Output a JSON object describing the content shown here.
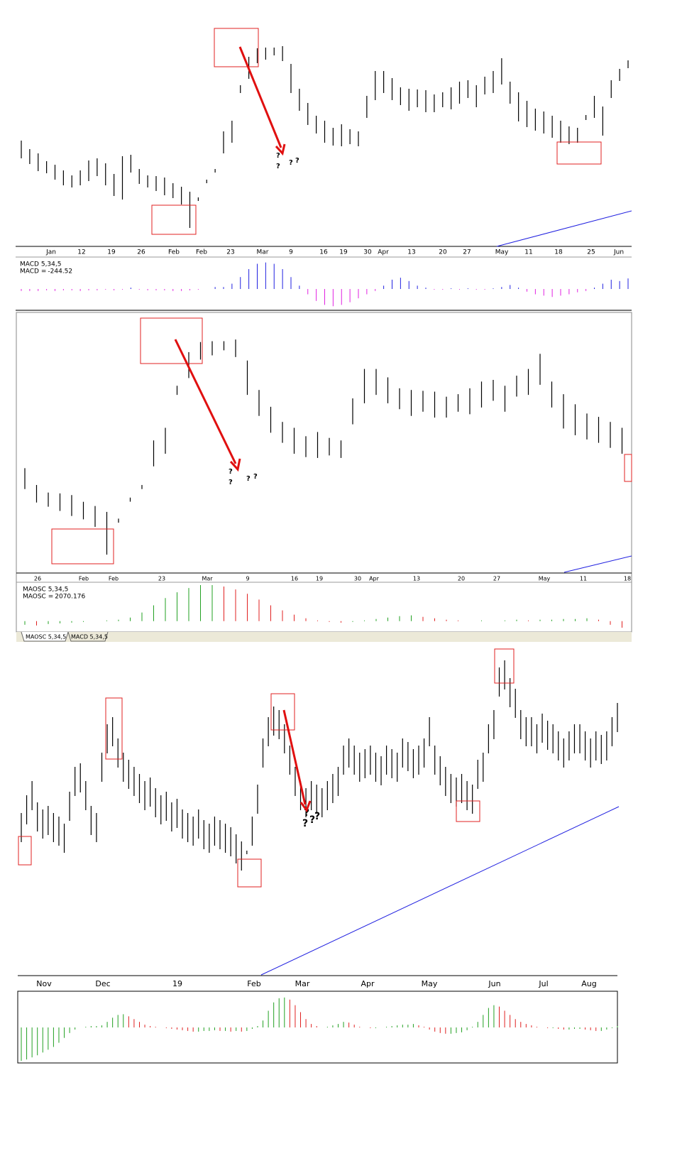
{
  "chart_data": [
    {
      "type": "hilo",
      "color": "#000000",
      "ylim": [
        0,
        315
      ],
      "x_labels": [
        "Jan",
        "12",
        "19",
        "26",
        "Feb",
        "Feb",
        "23",
        "Mar",
        "9",
        "16",
        "19",
        "30",
        "Apr",
        "13",
        "20",
        "27",
        "May",
        "11",
        "18",
        "25",
        "Jun"
      ],
      "high": [
        147,
        135,
        129,
        118,
        113,
        105,
        98,
        105,
        119,
        122,
        115,
        100,
        125,
        127,
        107,
        98,
        97,
        95,
        87,
        82,
        75,
        67,
        92,
        107,
        160,
        175,
        225,
        265,
        277,
        278,
        278,
        280,
        255,
        220,
        200,
        182,
        175,
        165,
        170,
        163,
        160,
        210,
        245,
        245,
        235,
        222,
        220,
        219,
        218,
        212,
        215,
        222,
        230,
        232,
        225,
        237,
        245,
        263,
        230,
        215,
        203,
        192,
        188,
        182,
        175,
        167,
        165,
        183,
        210,
        195,
        232,
        248,
        260
      ],
      "low": [
        123,
        115,
        105,
        102,
        93,
        85,
        82,
        85,
        91,
        98,
        85,
        70,
        65,
        103,
        87,
        82,
        77,
        71,
        67,
        58,
        25,
        63,
        88,
        103,
        130,
        145,
        215,
        235,
        257,
        262,
        268,
        260,
        215,
        190,
        170,
        158,
        145,
        141,
        140,
        143,
        140,
        180,
        205,
        215,
        205,
        198,
        190,
        195,
        188,
        188,
        195,
        192,
        200,
        208,
        195,
        213,
        215,
        227,
        200,
        175,
        167,
        162,
        158,
        152,
        145,
        143,
        145,
        177,
        180,
        155,
        208,
        232,
        250
      ],
      "annotations": [
        "?",
        "?",
        "?",
        "?"
      ]
    },
    {
      "type": "column",
      "title": "MACD 5,34,5",
      "label": "MACD =",
      "current": -244.52,
      "current_color": "#e020e0",
      "color_rule": "sign",
      "up_color": "#2020e0",
      "down_color": "#e020e0",
      "ylim": [
        -30,
        45
      ],
      "values": [
        -3,
        -3,
        -3,
        -2,
        -3,
        -2,
        -2,
        -3,
        -2,
        -2,
        -1,
        -2,
        -1,
        2,
        -1,
        -2,
        -2,
        -2,
        -3,
        -3,
        -2,
        -1,
        0,
        3,
        3,
        8,
        18,
        30,
        38,
        40,
        38,
        30,
        18,
        5,
        -8,
        -18,
        -24,
        -26,
        -24,
        -20,
        -14,
        -8,
        -3,
        5,
        14,
        17,
        12,
        5,
        2,
        -1,
        -1,
        1,
        -1,
        1,
        -1,
        -1,
        1,
        3,
        6,
        2,
        -4,
        -8,
        -10,
        -12,
        -10,
        -8,
        -5,
        -3,
        2,
        8,
        14,
        12,
        16
      ]
    },
    {
      "type": "hilo",
      "color": "#000000",
      "ylim": [
        4,
        308
      ],
      "x_labels": [
        "26",
        "Feb",
        "Feb",
        "23",
        "Mar",
        "9",
        "16",
        "19",
        "30",
        "Apr",
        "13",
        "20",
        "27",
        "May",
        "11",
        "18"
      ],
      "high": [
        127,
        107,
        98,
        97,
        95,
        87,
        82,
        75,
        67,
        92,
        107,
        160,
        175,
        225,
        265,
        277,
        278,
        278,
        280,
        255,
        220,
        200,
        182,
        175,
        165,
        170,
        163,
        160,
        210,
        245,
        245,
        235,
        222,
        220,
        219,
        218,
        212,
        215,
        222,
        230,
        232,
        225,
        237,
        245,
        263,
        230,
        215,
        203,
        192,
        188,
        182,
        175
      ],
      "low": [
        103,
        87,
        82,
        77,
        71,
        67,
        58,
        25,
        63,
        88,
        103,
        130,
        145,
        215,
        235,
        257,
        262,
        268,
        260,
        215,
        190,
        170,
        158,
        145,
        141,
        140,
        143,
        140,
        180,
        205,
        215,
        205,
        198,
        190,
        195,
        188,
        188,
        195,
        192,
        200,
        208,
        195,
        213,
        215,
        227,
        200,
        175,
        167,
        162,
        158,
        152,
        145
      ],
      "annotations": [
        "?",
        "?",
        "?",
        "?"
      ]
    },
    {
      "type": "column",
      "title": "MAOSC 5,34,5",
      "label": "MAOSC =",
      "current": 2070.176,
      "current_color": "#e02020",
      "color_rule": "slope",
      "up_color": "#22a022",
      "down_color": "#e02020",
      "ylim": [
        -13,
        52
      ],
      "values": [
        -5,
        -6,
        -4,
        -3,
        -2,
        -1,
        0,
        1,
        2,
        5,
        12,
        22,
        32,
        40,
        46,
        50,
        50,
        48,
        44,
        38,
        30,
        22,
        15,
        9,
        4,
        1,
        -1,
        -2,
        -1,
        1,
        3,
        5,
        7,
        8,
        6,
        4,
        2,
        1,
        0,
        1,
        0,
        1,
        2,
        1,
        2,
        2,
        3,
        3,
        4,
        2,
        -5,
        -9
      ]
    },
    {
      "type": "hilo",
      "color": "#000000",
      "ylim": [
        0,
        462
      ],
      "x_labels": [
        "Nov",
        "Dec",
        "19",
        "Feb",
        "Mar",
        "Apr",
        "May",
        "Jun",
        "Jul",
        "Aug"
      ],
      "high": [
        227,
        252,
        272,
        242,
        232,
        237,
        227,
        222,
        212,
        257,
        292,
        297,
        272,
        237,
        227,
        312,
        352,
        362,
        332,
        312,
        302,
        292,
        282,
        272,
        277,
        262,
        252,
        257,
        242,
        247,
        232,
        227,
        222,
        232,
        217,
        212,
        222,
        217,
        212,
        207,
        197,
        187,
        174,
        222,
        267,
        332,
        362,
        377,
        372,
        352,
        322,
        292,
        272,
        262,
        272,
        267,
        262,
        272,
        282,
        292,
        322,
        332,
        322,
        312,
        317,
        322,
        312,
        307,
        322,
        317,
        312,
        332,
        327,
        317,
        322,
        332,
        362,
        322,
        307,
        292,
        282,
        277,
        282,
        272,
        267,
        302,
        312,
        352,
        372,
        432,
        442,
        417,
        402,
        372,
        362,
        362,
        352,
        367,
        357,
        352,
        342,
        332,
        342,
        352,
        352,
        342,
        332,
        342,
        337,
        342,
        362,
        382
      ],
      "low": [
        187,
        212,
        232,
        202,
        192,
        197,
        187,
        182,
        172,
        217,
        252,
        257,
        232,
        197,
        187,
        272,
        312,
        322,
        292,
        272,
        262,
        252,
        242,
        232,
        237,
        222,
        212,
        217,
        202,
        207,
        192,
        187,
        182,
        192,
        177,
        172,
        182,
        177,
        172,
        167,
        157,
        147,
        170,
        182,
        227,
        292,
        322,
        337,
        332,
        312,
        282,
        252,
        232,
        222,
        232,
        227,
        222,
        232,
        242,
        252,
        282,
        292,
        282,
        272,
        277,
        282,
        272,
        267,
        282,
        277,
        272,
        292,
        287,
        277,
        282,
        292,
        322,
        282,
        267,
        252,
        242,
        237,
        242,
        232,
        227,
        262,
        272,
        312,
        332,
        392,
        402,
        377,
        362,
        332,
        322,
        322,
        312,
        327,
        317,
        312,
        302,
        292,
        302,
        312,
        312,
        302,
        292,
        302,
        297,
        302,
        322,
        342
      ],
      "annotations": [
        "?",
        "?",
        "?",
        "?"
      ]
    },
    {
      "type": "column",
      "color_rule": "slope",
      "up_color": "#22a022",
      "down_color": "#e02020",
      "ylim": [
        -50,
        50
      ],
      "values": [
        -48,
        -46,
        -43,
        -40,
        -36,
        -32,
        -28,
        -22,
        -15,
        -8,
        -3,
        0,
        1,
        2,
        2,
        3,
        8,
        14,
        18,
        19,
        16,
        12,
        8,
        4,
        2,
        1,
        0,
        -1,
        -2,
        -3,
        -4,
        -5,
        -6,
        -6,
        -5,
        -5,
        -4,
        -5,
        -5,
        -6,
        -5,
        -6,
        -5,
        -2,
        2,
        10,
        24,
        36,
        42,
        43,
        40,
        32,
        22,
        12,
        5,
        2,
        0,
        1,
        3,
        5,
        8,
        7,
        4,
        1,
        0,
        -1,
        -1,
        0,
        1,
        2,
        3,
        4,
        4,
        5,
        3,
        1,
        -3,
        -6,
        -8,
        -9,
        -9,
        -8,
        -7,
        -4,
        1,
        8,
        18,
        28,
        32,
        30,
        24,
        18,
        12,
        8,
        5,
        3,
        1,
        0,
        -1,
        -1,
        -2,
        -3,
        -3,
        -2,
        -2,
        -3,
        -4,
        -5,
        -5,
        -3,
        -1,
        2
      ]
    }
  ],
  "tabs": [
    "MAOSC 5,34,5",
    "MACD 5,34,5"
  ]
}
